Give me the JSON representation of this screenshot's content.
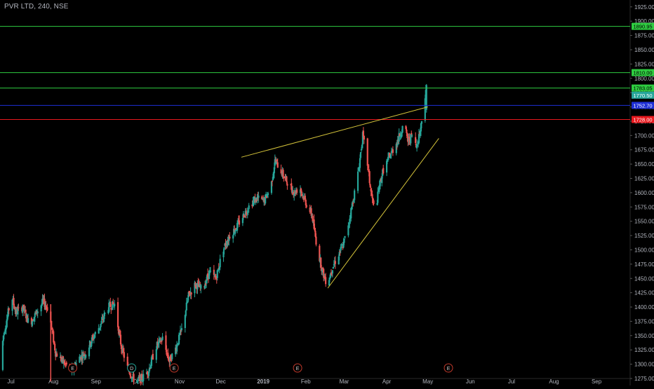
{
  "header": {
    "symbol_title": "PVR LTD, 240, NSE"
  },
  "colors": {
    "background": "#000000",
    "up": "#26a69a",
    "down": "#ef5350",
    "axis_text": "#b2b5be",
    "axis_line": "#2a2a2a",
    "event_marker": "#c0392b",
    "dividend_marker": "#26a69a",
    "trendline": "#d4c33a"
  },
  "chart_data": {
    "type": "candlestick",
    "title": "PVR LTD, 240, NSE",
    "ylim": [
      1275,
      1937
    ],
    "x_range": [
      "2018-06-23",
      "2019-09-25"
    ],
    "y_ticks": [
      1275,
      1300,
      1325,
      1350,
      1375,
      1400,
      1425,
      1450,
      1475,
      1500,
      1525,
      1550,
      1575,
      1600,
      1625,
      1650,
      1675,
      1700,
      1725,
      1750,
      1775,
      1800,
      1825,
      1850,
      1875,
      1900,
      1925
    ],
    "y_tick_labels": [
      "1275.00",
      "1300.00",
      "1325.00",
      "1350.00",
      "1375.00",
      "1400.00",
      "1425.00",
      "1450.00",
      "1475.00",
      "1500.00",
      "1525.00",
      "1550.00",
      "1575.00",
      "1600.00",
      "1625.00",
      "1650.00",
      "1675.00",
      "1700.00",
      "1725.00",
      "1750.00",
      "1775.00",
      "1800.00",
      "1825.00",
      "1850.00",
      "1875.00",
      "1900.00",
      "1925.00"
    ],
    "x_ticks": [
      {
        "date": "2018-07-01",
        "label": "Jul"
      },
      {
        "date": "2018-08-01",
        "label": "Aug"
      },
      {
        "date": "2018-09-01",
        "label": "Sep"
      },
      {
        "date": "2018-10-01",
        "label": "Oct"
      },
      {
        "date": "2018-11-01",
        "label": "Nov"
      },
      {
        "date": "2018-12-01",
        "label": "Dec"
      },
      {
        "date": "2019-01-01",
        "label": "2019"
      },
      {
        "date": "2019-02-01",
        "label": "Feb"
      },
      {
        "date": "2019-03-01",
        "label": "Mar"
      },
      {
        "date": "2019-04-01",
        "label": "Apr"
      },
      {
        "date": "2019-05-01",
        "label": "May"
      },
      {
        "date": "2019-06-01",
        "label": "Jun"
      },
      {
        "date": "2019-07-01",
        "label": "Jul"
      },
      {
        "date": "2019-08-01",
        "label": "Aug"
      },
      {
        "date": "2019-09-01",
        "label": "Sep"
      }
    ],
    "price_path": [
      [
        "2018-06-23",
        1290
      ],
      [
        "2018-06-26",
        1350
      ],
      [
        "2018-07-02",
        1420
      ],
      [
        "2018-07-05",
        1390
      ],
      [
        "2018-07-10",
        1400
      ],
      [
        "2018-07-15",
        1370
      ],
      [
        "2018-07-20",
        1390
      ],
      [
        "2018-07-25",
        1410
      ],
      [
        "2018-07-29",
        1395
      ],
      [
        "2018-08-03",
        1320
      ],
      [
        "2018-08-10",
        1300
      ],
      [
        "2018-08-15",
        1290
      ],
      [
        "2018-08-20",
        1310
      ],
      [
        "2018-08-25",
        1320
      ],
      [
        "2018-08-30",
        1345
      ],
      [
        "2018-09-05",
        1370
      ],
      [
        "2018-09-10",
        1400
      ],
      [
        "2018-09-15",
        1405
      ],
      [
        "2018-09-20",
        1330
      ],
      [
        "2018-09-25",
        1290
      ],
      [
        "2018-09-30",
        1270
      ],
      [
        "2018-10-05",
        1275
      ],
      [
        "2018-10-10",
        1290
      ],
      [
        "2018-10-15",
        1330
      ],
      [
        "2018-10-20",
        1345
      ],
      [
        "2018-10-25",
        1305
      ],
      [
        "2018-10-30",
        1330
      ],
      [
        "2018-11-03",
        1360
      ],
      [
        "2018-11-08",
        1420
      ],
      [
        "2018-11-13",
        1440
      ],
      [
        "2018-11-18",
        1430
      ],
      [
        "2018-11-23",
        1460
      ],
      [
        "2018-11-28",
        1450
      ],
      [
        "2018-12-03",
        1500
      ],
      [
        "2018-12-08",
        1525
      ],
      [
        "2018-12-13",
        1540
      ],
      [
        "2018-12-18",
        1560
      ],
      [
        "2018-12-23",
        1580
      ],
      [
        "2018-12-28",
        1590
      ],
      [
        "2019-01-02",
        1585
      ],
      [
        "2019-01-07",
        1610
      ],
      [
        "2019-01-10",
        1655
      ],
      [
        "2019-01-13",
        1645
      ],
      [
        "2019-01-16",
        1630
      ],
      [
        "2019-01-20",
        1615
      ],
      [
        "2019-01-24",
        1600
      ],
      [
        "2019-01-28",
        1610
      ],
      [
        "2019-02-02",
        1580
      ],
      [
        "2019-02-06",
        1560
      ],
      [
        "2019-02-10",
        1500
      ],
      [
        "2019-02-14",
        1460
      ],
      [
        "2019-02-17",
        1440
      ],
      [
        "2019-02-21",
        1470
      ],
      [
        "2019-02-25",
        1490
      ],
      [
        "2019-03-01",
        1510
      ],
      [
        "2019-03-05",
        1550
      ],
      [
        "2019-03-09",
        1600
      ],
      [
        "2019-03-12",
        1640
      ],
      [
        "2019-03-15",
        1700
      ],
      [
        "2019-03-18",
        1660
      ],
      [
        "2019-03-21",
        1600
      ],
      [
        "2019-03-24",
        1565
      ],
      [
        "2019-03-27",
        1610
      ],
      [
        "2019-03-30",
        1640
      ],
      [
        "2019-04-03",
        1660
      ],
      [
        "2019-04-07",
        1680
      ],
      [
        "2019-04-10",
        1695
      ],
      [
        "2019-04-14",
        1720
      ],
      [
        "2019-04-17",
        1690
      ],
      [
        "2019-04-20",
        1700
      ],
      [
        "2019-04-23",
        1680
      ],
      [
        "2019-04-26",
        1710
      ],
      [
        "2019-04-29",
        1760
      ],
      [
        "2019-04-30",
        1783
      ]
    ],
    "horizontal_levels": [
      {
        "value": 1890.95,
        "label": "1890.95",
        "color": "#2ecc40"
      },
      {
        "value": 1810.0,
        "label": "1810.00",
        "color": "#2ecc40"
      },
      {
        "value": 1783.05,
        "label": "1783.05",
        "color": "#2ecc40"
      },
      {
        "value": 1752.7,
        "label": "1752.70",
        "color": "#1e2fd6"
      },
      {
        "value": 1728.0,
        "label": "1728.00",
        "color": "#e8191e"
      }
    ],
    "last_price": {
      "value": 1770.5,
      "label": "1770.50",
      "color": "#26a69a"
    },
    "trendlines": [
      {
        "name": "upper",
        "from": [
          "2018-12-16",
          1662
        ],
        "to": [
          "2019-05-01",
          1750
        ]
      },
      {
        "name": "lower",
        "from": [
          "2019-02-17",
          1433
        ],
        "to": [
          "2019-05-09",
          1695
        ]
      }
    ],
    "events": [
      {
        "date": "2018-08-15",
        "label": "E",
        "kind": "earnings"
      },
      {
        "date": "2018-09-27",
        "label": "D",
        "kind": "dividend"
      },
      {
        "date": "2018-10-28",
        "label": "E",
        "kind": "earnings"
      },
      {
        "date": "2019-01-26",
        "label": "E",
        "kind": "earnings"
      },
      {
        "date": "2019-05-16",
        "label": "E",
        "kind": "earnings"
      }
    ]
  }
}
